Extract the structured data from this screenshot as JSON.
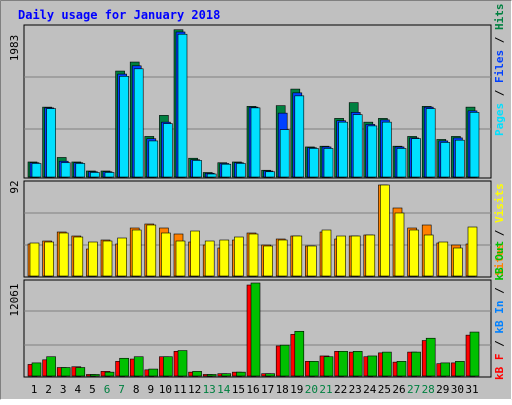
{
  "title": "Daily usage for January 2018",
  "colors": {
    "background": "#c0c0c0",
    "plot_bg": "#c0c0c0",
    "title": "#0000ff",
    "hits": "#008040",
    "files": "#0040ff",
    "pages": "#00e0ff",
    "visits": "#ffff00",
    "sites": "#ff8000",
    "kb_in": "#0080ff",
    "kb_out": "#00c000",
    "kb_f": "#ff0000",
    "weekend": "#008040",
    "weekday": "#000000"
  },
  "chart_data": [
    {
      "type": "bar",
      "panel": "hits-files-pages",
      "ymax_label": "1983",
      "ylim": [
        0,
        1983
      ],
      "grid": true,
      "legend": {
        "position": "right",
        "items": [
          {
            "name": "Pages",
            "color": "#00e0ff"
          },
          {
            "name": "Files",
            "color": "#0040ff"
          },
          {
            "name": "Hits",
            "color": "#008040"
          }
        ]
      },
      "categories": [
        "1",
        "2",
        "3",
        "4",
        "5",
        "6",
        "7",
        "8",
        "9",
        "10",
        "11",
        "12",
        "13",
        "14",
        "15",
        "16",
        "17",
        "18",
        "19",
        "20",
        "21",
        "22",
        "23",
        "24",
        "25",
        "26",
        "27",
        "28",
        "29",
        "30",
        "31"
      ],
      "series": [
        {
          "name": "Hits",
          "values": [
            200,
            930,
            260,
            200,
            80,
            80,
            1410,
            1530,
            540,
            820,
            1960,
            250,
            60,
            190,
            200,
            940,
            90,
            950,
            1170,
            400,
            410,
            780,
            990,
            730,
            780,
            410,
            540,
            940,
            500,
            540,
            930
          ]
        },
        {
          "name": "Files",
          "values": [
            190,
            920,
            210,
            190,
            70,
            70,
            1370,
            1480,
            510,
            730,
            1930,
            230,
            50,
            180,
            190,
            930,
            80,
            850,
            1120,
            390,
            400,
            750,
            860,
            700,
            760,
            400,
            520,
            930,
            480,
            520,
            880
          ]
        },
        {
          "name": "Pages",
          "values": [
            180,
            910,
            190,
            180,
            60,
            60,
            1340,
            1440,
            480,
            710,
            1900,
            220,
            40,
            170,
            180,
            920,
            70,
            630,
            1080,
            380,
            380,
            730,
            830,
            680,
            730,
            380,
            510,
            910,
            460,
            490,
            860
          ]
        }
      ]
    },
    {
      "type": "bar",
      "panel": "visits-sites",
      "ymax_label": "92",
      "ylim": [
        0,
        92
      ],
      "grid": true,
      "legend": {
        "position": "right",
        "items": [
          {
            "name": "Sites",
            "color": "#ff8000"
          },
          {
            "name": "Visits",
            "color": "#ffff00"
          }
        ]
      },
      "categories": [
        "1",
        "2",
        "3",
        "4",
        "5",
        "6",
        "7",
        "8",
        "9",
        "10",
        "11",
        "12",
        "13",
        "14",
        "15",
        "16",
        "17",
        "18",
        "19",
        "20",
        "21",
        "22",
        "23",
        "24",
        "25",
        "26",
        "27",
        "28",
        "29",
        "30",
        "31"
      ],
      "series": [
        {
          "name": "Visits",
          "values": [
            32,
            35,
            44,
            40,
            27,
            36,
            32,
            48,
            52,
            48,
            42,
            34,
            31,
            28,
            36,
            43,
            31,
            37,
            40,
            30,
            44,
            37,
            40,
            41,
            91,
            68,
            48,
            51,
            33,
            31,
            32
          ]
        },
        {
          "name": "Sites",
          "values": [
            33,
            34,
            43,
            39,
            34,
            35,
            38,
            46,
            51,
            43,
            35,
            45,
            35,
            36,
            39,
            42,
            30,
            36,
            40,
            30,
            46,
            40,
            40,
            41,
            91,
            63,
            46,
            41,
            34,
            28,
            49
          ]
        }
      ]
    },
    {
      "type": "bar",
      "panel": "kbytes",
      "ymax_label": "12061",
      "ylim": [
        0,
        12061
      ],
      "grid": true,
      "legend": {
        "position": "right",
        "items": [
          {
            "name": "kB F",
            "color": "#ff0000"
          },
          {
            "name": "kB In",
            "color": "#0080ff"
          },
          {
            "name": "kB Out",
            "color": "#00c000"
          }
        ]
      },
      "categories": [
        "1",
        "2",
        "3",
        "4",
        "5",
        "6",
        "7",
        "8",
        "9",
        "10",
        "11",
        "12",
        "13",
        "14",
        "15",
        "16",
        "17",
        "18",
        "19",
        "20",
        "21",
        "22",
        "23",
        "24",
        "25",
        "26",
        "27",
        "28",
        "29",
        "30",
        "31"
      ],
      "series": [
        {
          "name": "kB F",
          "values": [
            1500,
            2100,
            1100,
            1200,
            200,
            600,
            1900,
            2200,
            800,
            2500,
            3200,
            500,
            200,
            300,
            500,
            11800,
            300,
            3900,
            5400,
            1900,
            2600,
            3200,
            3100,
            2500,
            3000,
            1800,
            3100,
            4600,
            1600,
            1700,
            5300
          ]
        },
        {
          "name": "kB In",
          "values": [
            0,
            0,
            0,
            0,
            0,
            0,
            0,
            0,
            0,
            0,
            0,
            0,
            0,
            0,
            0,
            0,
            0,
            0,
            0,
            0,
            0,
            0,
            0,
            0,
            0,
            0,
            0,
            0,
            0,
            0,
            0
          ]
        },
        {
          "name": "kB Out",
          "values": [
            1700,
            2500,
            1100,
            1100,
            200,
            500,
            2300,
            2500,
            900,
            2500,
            3300,
            600,
            200,
            300,
            500,
            12061,
            300,
            4000,
            5800,
            1900,
            2500,
            3200,
            3200,
            2600,
            3100,
            1900,
            3100,
            4900,
            1700,
            1900,
            5700
          ]
        }
      ]
    }
  ],
  "x_labels": [
    {
      "text": "1",
      "weekend": false
    },
    {
      "text": "2",
      "weekend": false
    },
    {
      "text": "3",
      "weekend": false
    },
    {
      "text": "4",
      "weekend": false
    },
    {
      "text": "5",
      "weekend": false
    },
    {
      "text": "6",
      "weekend": true
    },
    {
      "text": "7",
      "weekend": true
    },
    {
      "text": "8",
      "weekend": false
    },
    {
      "text": "9",
      "weekend": false
    },
    {
      "text": "10",
      "weekend": false
    },
    {
      "text": "11",
      "weekend": false
    },
    {
      "text": "12",
      "weekend": false
    },
    {
      "text": "13",
      "weekend": true
    },
    {
      "text": "14",
      "weekend": true
    },
    {
      "text": "15",
      "weekend": false
    },
    {
      "text": "16",
      "weekend": false
    },
    {
      "text": "17",
      "weekend": false
    },
    {
      "text": "18",
      "weekend": false
    },
    {
      "text": "19",
      "weekend": false
    },
    {
      "text": "20",
      "weekend": true
    },
    {
      "text": "21",
      "weekend": true
    },
    {
      "text": "22",
      "weekend": false
    },
    {
      "text": "23",
      "weekend": false
    },
    {
      "text": "24",
      "weekend": false
    },
    {
      "text": "25",
      "weekend": false
    },
    {
      "text": "26",
      "weekend": false
    },
    {
      "text": "27",
      "weekend": true
    },
    {
      "text": "28",
      "weekend": true
    },
    {
      "text": "29",
      "weekend": false
    },
    {
      "text": "30",
      "weekend": false
    },
    {
      "text": "31",
      "weekend": false
    }
  ]
}
